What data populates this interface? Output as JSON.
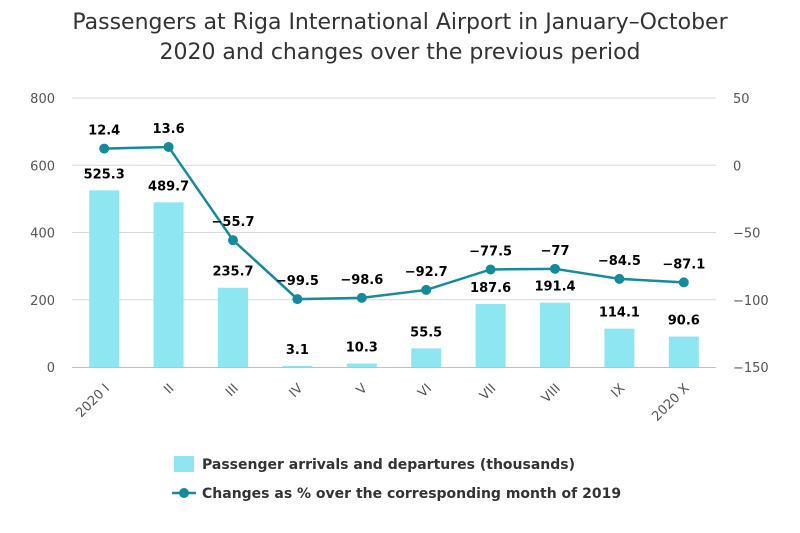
{
  "chart_data": {
    "type": "bar+line",
    "title_line1": "Passengers at Riga International Airport in January–October",
    "title_line2": "2020 and changes over the previous period",
    "categories": [
      "2020 I",
      "II",
      "III",
      "IV",
      "V",
      "VI",
      "VII",
      "VIII",
      "IX",
      "2020 X"
    ],
    "series": [
      {
        "name": "Passenger arrivals and departures (thousands)",
        "type": "bar",
        "axis": "left",
        "color": "#8ee6f3",
        "values": [
          525.3,
          489.7,
          235.7,
          3.1,
          10.3,
          55.5,
          187.6,
          191.4,
          114.1,
          90.6
        ],
        "labels": [
          "525.3",
          "489.7",
          "235.7",
          "3.1",
          "10.3",
          "55.5",
          "187.6",
          "191.4",
          "114.1",
          "90.6"
        ]
      },
      {
        "name": "Changes as % over the corresponding month of 2019",
        "type": "line",
        "axis": "right",
        "color": "#158a9c",
        "values": [
          12.4,
          13.6,
          -55.7,
          -99.5,
          -98.6,
          -92.7,
          -77.5,
          -77,
          -84.5,
          -87.1
        ],
        "labels": [
          "12.4",
          "13.6",
          "−55.7",
          "−99.5",
          "−98.6",
          "−92.7",
          "−77.5",
          "−77",
          "−84.5",
          "−87.1"
        ]
      }
    ],
    "y_left": {
      "ylim": [
        0,
        800
      ],
      "ticks": [
        0,
        200,
        400,
        600,
        800
      ],
      "tick_labels": [
        "0",
        "200",
        "400",
        "600",
        "800"
      ]
    },
    "y_right": {
      "ylim": [
        -150,
        50
      ],
      "ticks": [
        -150,
        -100,
        -50,
        0,
        50
      ],
      "tick_labels": [
        "−150",
        "−100",
        "−50",
        "0",
        "50"
      ]
    },
    "grid": true,
    "legend_placement": "bottom-center"
  }
}
